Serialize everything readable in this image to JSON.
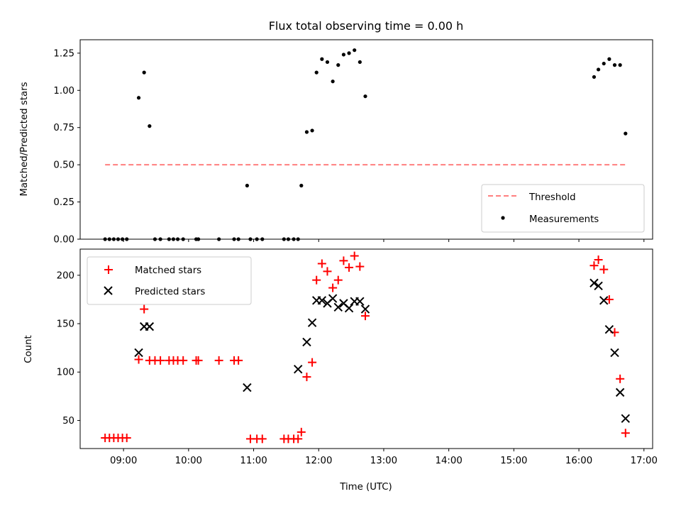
{
  "chart_data": [
    {
      "type": "scatter",
      "title": "Flux total observing time = 0.00 h",
      "xlabel": "",
      "ylabel": "Matched/Predicted stars",
      "xlim": [
        "08:20",
        "17:08"
      ],
      "ylim": [
        0,
        1.34
      ],
      "yticks": [
        "0.00",
        "0.25",
        "0.50",
        "0.75",
        "1.00",
        "1.25"
      ],
      "legend_position": "lower-right",
      "grid": false,
      "series": [
        {
          "name": "Threshold",
          "style": "dashed-line",
          "color": "#ff7f7f",
          "points": [
            [
              "08:43",
              0.5
            ],
            [
              "16:43",
              0.5
            ]
          ]
        },
        {
          "name": "Measurements",
          "style": "dot",
          "color": "#000000",
          "points": [
            [
              "08:43",
              0
            ],
            [
              "08:47",
              0
            ],
            [
              "08:51",
              0
            ],
            [
              "08:55",
              0
            ],
            [
              "08:59",
              0
            ],
            [
              "09:03",
              0
            ],
            [
              "09:14",
              0.95
            ],
            [
              "09:19",
              1.12
            ],
            [
              "09:24",
              0.76
            ],
            [
              "09:29",
              0
            ],
            [
              "09:34",
              0
            ],
            [
              "09:42",
              0
            ],
            [
              "09:46",
              0
            ],
            [
              "09:50",
              0
            ],
            [
              "09:55",
              0
            ],
            [
              "10:07",
              0
            ],
            [
              "10:09",
              0
            ],
            [
              "10:28",
              0
            ],
            [
              "10:42",
              0
            ],
            [
              "10:46",
              0
            ],
            [
              "10:54",
              0.36
            ],
            [
              "10:57",
              0
            ],
            [
              "11:03",
              0
            ],
            [
              "11:08",
              0
            ],
            [
              "11:28",
              0
            ],
            [
              "11:32",
              0
            ],
            [
              "11:37",
              0
            ],
            [
              "11:41",
              0
            ],
            [
              "11:44",
              0.36
            ],
            [
              "11:49",
              0.72
            ],
            [
              "11:54",
              0.73
            ],
            [
              "11:58",
              1.12
            ],
            [
              "12:03",
              1.21
            ],
            [
              "12:08",
              1.19
            ],
            [
              "12:13",
              1.06
            ],
            [
              "12:18",
              1.17
            ],
            [
              "12:23",
              1.24
            ],
            [
              "12:28",
              1.25
            ],
            [
              "12:33",
              1.27
            ],
            [
              "12:38",
              1.19
            ],
            [
              "12:43",
              0.96
            ],
            [
              "16:14",
              1.09
            ],
            [
              "16:18",
              1.14
            ],
            [
              "16:23",
              1.18
            ],
            [
              "16:28",
              1.21
            ],
            [
              "16:33",
              1.17
            ],
            [
              "16:38",
              1.17
            ],
            [
              "16:43",
              0.71
            ]
          ]
        }
      ]
    },
    {
      "type": "scatter",
      "title": "",
      "xlabel": "Time (UTC)",
      "ylabel": "Count",
      "xlim": [
        "08:20",
        "17:08"
      ],
      "ylim": [
        21,
        227
      ],
      "yticks": [
        "50",
        "100",
        "150",
        "200"
      ],
      "xticks": [
        "09:00",
        "10:00",
        "11:00",
        "12:00",
        "13:00",
        "14:00",
        "15:00",
        "16:00",
        "17:00"
      ],
      "legend_position": "upper-left",
      "grid": false,
      "series": [
        {
          "name": "Matched stars",
          "style": "plus",
          "color": "#ff0000",
          "points": [
            [
              "08:43",
              32
            ],
            [
              "08:47",
              32
            ],
            [
              "08:51",
              32
            ],
            [
              "08:55",
              32
            ],
            [
              "08:59",
              32
            ],
            [
              "09:03",
              32
            ],
            [
              "09:14",
              113
            ],
            [
              "09:19",
              165
            ],
            [
              "09:24",
              112
            ],
            [
              "09:29",
              112
            ],
            [
              "09:34",
              112
            ],
            [
              "09:42",
              112
            ],
            [
              "09:46",
              112
            ],
            [
              "09:50",
              112
            ],
            [
              "09:55",
              112
            ],
            [
              "10:07",
              112
            ],
            [
              "10:09",
              112
            ],
            [
              "10:28",
              112
            ],
            [
              "10:42",
              112
            ],
            [
              "10:46",
              112
            ],
            [
              "10:57",
              31
            ],
            [
              "11:03",
              31
            ],
            [
              "11:08",
              31
            ],
            [
              "11:28",
              31
            ],
            [
              "11:32",
              31
            ],
            [
              "11:37",
              31
            ],
            [
              "11:41",
              31
            ],
            [
              "11:44",
              38
            ],
            [
              "11:49",
              95
            ],
            [
              "11:54",
              110
            ],
            [
              "11:58",
              195
            ],
            [
              "12:03",
              212
            ],
            [
              "12:08",
              204
            ],
            [
              "12:13",
              187
            ],
            [
              "12:18",
              195
            ],
            [
              "12:23",
              215
            ],
            [
              "12:28",
              208
            ],
            [
              "12:33",
              220
            ],
            [
              "12:38",
              209
            ],
            [
              "12:43",
              158
            ],
            [
              "16:14",
              210
            ],
            [
              "16:18",
              216
            ],
            [
              "16:23",
              206
            ],
            [
              "16:28",
              175
            ],
            [
              "16:33",
              141
            ],
            [
              "16:38",
              93
            ],
            [
              "16:43",
              37
            ]
          ]
        },
        {
          "name": "Predicted stars",
          "style": "x",
          "color": "#000000",
          "points": [
            [
              "09:14",
              120
            ],
            [
              "09:19",
              147
            ],
            [
              "09:24",
              147
            ],
            [
              "10:54",
              84
            ],
            [
              "11:41",
              103
            ],
            [
              "11:49",
              131
            ],
            [
              "11:54",
              151
            ],
            [
              "11:58",
              174
            ],
            [
              "12:03",
              174
            ],
            [
              "12:08",
              171
            ],
            [
              "12:13",
              176
            ],
            [
              "12:18",
              167
            ],
            [
              "12:23",
              171
            ],
            [
              "12:28",
              166
            ],
            [
              "12:33",
              173
            ],
            [
              "12:38",
              173
            ],
            [
              "12:43",
              165
            ],
            [
              "16:14",
              192
            ],
            [
              "16:18",
              189
            ],
            [
              "16:23",
              174
            ],
            [
              "16:28",
              144
            ],
            [
              "16:33",
              120
            ],
            [
              "16:38",
              79
            ],
            [
              "16:43",
              52
            ]
          ]
        }
      ]
    }
  ]
}
